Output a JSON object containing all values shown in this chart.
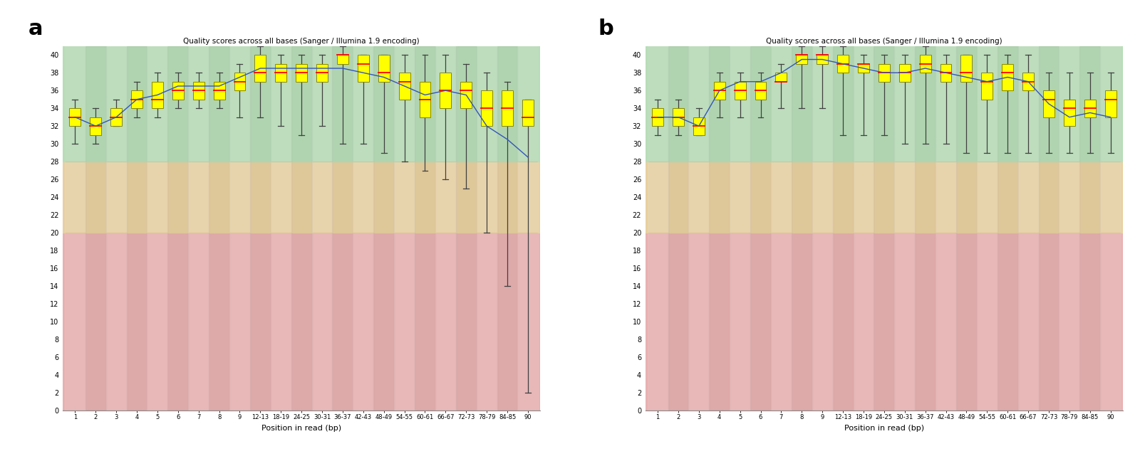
{
  "title": "Quality scores across all bases (Sanger / Illumina 1.9 encoding)",
  "xlabel": "Position in read (bp)",
  "xlabels_a": [
    "1",
    "2",
    "3",
    "4",
    "5",
    "6",
    "7",
    "8",
    "9",
    "12-13",
    "18-19",
    "24-25",
    "30-31",
    "36-37",
    "42-43",
    "48-49",
    "54-55",
    "60-61",
    "66-67",
    "72-73",
    "78-79",
    "84-85",
    "90"
  ],
  "xlabels_b": [
    "1",
    "2",
    "3",
    "4",
    "5",
    "6",
    "7",
    "8",
    "9",
    "12-13",
    "18-19",
    "24-25",
    "30-31",
    "36-37",
    "42-43",
    "48-49",
    "54-55",
    "60-61",
    "66-67",
    "72-73",
    "78-79",
    "84-85",
    "90"
  ],
  "ylim": [
    0,
    41
  ],
  "yticks": [
    0,
    2,
    4,
    6,
    8,
    10,
    12,
    14,
    16,
    18,
    20,
    22,
    24,
    26,
    28,
    30,
    32,
    34,
    36,
    38,
    40
  ],
  "panel_a": {
    "box_median": [
      33,
      32,
      33,
      35,
      35,
      36,
      36,
      36,
      37,
      38,
      38,
      38,
      38,
      40,
      39,
      38,
      37,
      35,
      36,
      36,
      34,
      34,
      33
    ],
    "box_q1": [
      32,
      31,
      32,
      34,
      34,
      35,
      35,
      35,
      36,
      37,
      37,
      37,
      37,
      39,
      37,
      37,
      35,
      33,
      34,
      34,
      32,
      32,
      32
    ],
    "box_q3": [
      34,
      33,
      34,
      36,
      37,
      37,
      37,
      37,
      38,
      40,
      39,
      39,
      39,
      40,
      40,
      40,
      38,
      37,
      38,
      37,
      36,
      36,
      35
    ],
    "whisker_lo": [
      30,
      30,
      32,
      33,
      33,
      34,
      34,
      34,
      33,
      33,
      32,
      31,
      32,
      30,
      30,
      29,
      28,
      27,
      26,
      25,
      20,
      14,
      2
    ],
    "whisker_hi": [
      35,
      34,
      35,
      37,
      38,
      38,
      38,
      38,
      39,
      41,
      40,
      40,
      40,
      41,
      40,
      40,
      40,
      40,
      40,
      39,
      38,
      37,
      35
    ],
    "mean_line": [
      33,
      32,
      33,
      35,
      35.5,
      36.5,
      36.5,
      36.5,
      37.5,
      38.5,
      38.5,
      38.5,
      38.5,
      38.5,
      38,
      37.5,
      36.5,
      35.5,
      36,
      35.5,
      32,
      30.5,
      28.5
    ]
  },
  "panel_b": {
    "box_median": [
      33,
      33,
      32,
      36,
      36,
      36,
      37,
      40,
      40,
      39,
      39,
      38,
      38,
      39,
      38,
      38,
      37,
      38,
      37,
      35,
      34,
      34,
      35
    ],
    "box_q1": [
      32,
      32,
      31,
      35,
      35,
      35,
      37,
      39,
      39,
      38,
      38,
      37,
      37,
      38,
      37,
      37,
      35,
      36,
      36,
      33,
      32,
      33,
      33
    ],
    "box_q3": [
      34,
      34,
      33,
      37,
      37,
      37,
      38,
      40,
      40,
      40,
      39,
      39,
      39,
      40,
      39,
      40,
      38,
      39,
      38,
      36,
      35,
      35,
      36
    ],
    "whisker_lo": [
      31,
      31,
      31,
      33,
      33,
      33,
      34,
      34,
      34,
      31,
      31,
      31,
      30,
      30,
      30,
      29,
      29,
      29,
      29,
      29,
      29,
      29,
      29
    ],
    "whisker_hi": [
      35,
      35,
      34,
      38,
      38,
      38,
      39,
      41,
      41,
      41,
      40,
      40,
      40,
      41,
      40,
      40,
      40,
      40,
      40,
      38,
      38,
      38,
      38
    ],
    "mean_line": [
      33,
      33,
      32,
      36,
      37,
      37,
      38,
      39.5,
      39.5,
      39,
      38.5,
      38,
      38,
      38.5,
      38,
      37.5,
      37,
      37.5,
      37,
      34.5,
      33,
      33.5,
      33
    ]
  },
  "colors": {
    "bg_green": "#b8ddb8",
    "bg_orange": "#e8d0a0",
    "bg_red": "#e8b0b0",
    "stripe_green_light": "#c8e8c8",
    "stripe_green_dark": "#a8d0a8",
    "stripe_orange_light": "#f0dab0",
    "stripe_orange_dark": "#dcc090",
    "stripe_red_light": "#f0b8b8",
    "stripe_red_dark": "#e0a0a0",
    "box_fill": "#ffff00",
    "box_edge": "#888800",
    "median_line": "#ff0000",
    "whisker_color": "#404040",
    "mean_line_color": "#3355bb"
  }
}
